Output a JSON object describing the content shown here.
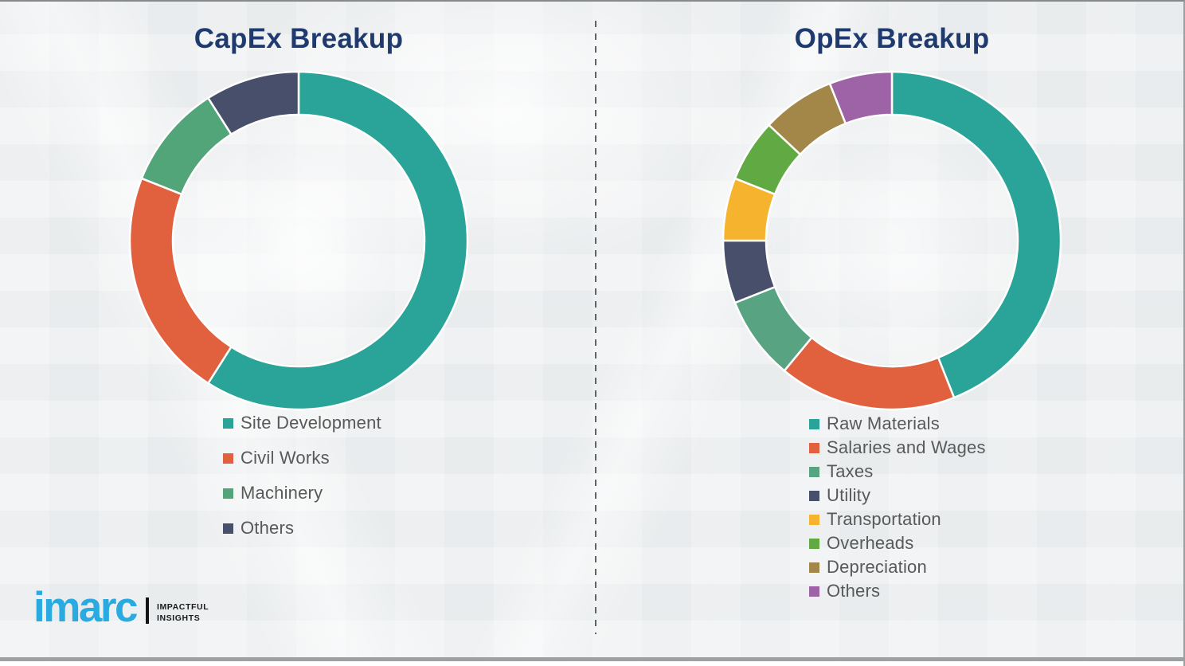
{
  "page": {
    "background_color": "#eff1f2",
    "border_color": "#9a9fa2",
    "divider_color": "#5f6469",
    "title_color": "#1f3a6e",
    "legend_text_color": "#595959",
    "segment_separator_color": "#ffffff"
  },
  "chart_data": [
    {
      "type": "pie",
      "subtype": "donut",
      "title": "CapEx Breakup",
      "categories": [
        "Site Development",
        "Civil Works",
        "Machinery",
        "Others"
      ],
      "values": [
        59,
        22,
        10,
        9
      ],
      "unit": "%",
      "colors": [
        "#2aa498",
        "#e1603e",
        "#52a578",
        "#484f6a"
      ],
      "start_angle_deg": 0,
      "hole_ratio": 0.745,
      "legend_position": "bottom"
    },
    {
      "type": "pie",
      "subtype": "donut",
      "title": "OpEx Breakup",
      "categories": [
        "Raw Materials",
        "Salaries and Wages",
        "Taxes",
        "Utility",
        "Transportation",
        "Overheads",
        "Depreciation",
        "Others"
      ],
      "values": [
        44,
        17,
        8,
        6,
        6,
        6,
        7,
        6
      ],
      "unit": "%",
      "colors": [
        "#2aa498",
        "#e1603e",
        "#58a382",
        "#484f6a",
        "#f6b32e",
        "#61a943",
        "#a28749",
        "#9e63a6"
      ],
      "start_angle_deg": 0,
      "hole_ratio": 0.745,
      "legend_position": "bottom"
    }
  ],
  "logo": {
    "brand": "imarc",
    "tagline": [
      "IMPACTFUL",
      "INSIGHTS"
    ],
    "brand_color": "#29aae1",
    "tagline_color": "#1b1b1b"
  }
}
